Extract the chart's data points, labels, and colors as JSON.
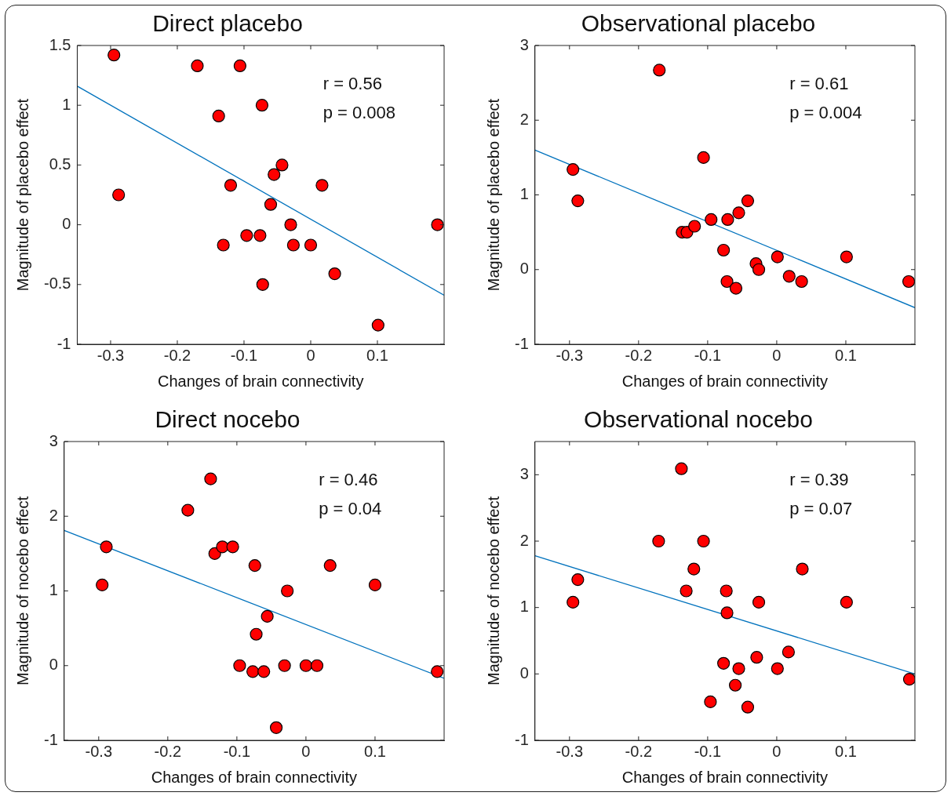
{
  "chart_data": [
    {
      "type": "scatter",
      "title": "Direct placebo",
      "xlabel": "Changes of brain connectivity",
      "ylabel": "Magnitude of placebo effect",
      "xlim": [
        -0.35,
        0.2
      ],
      "xticks": [
        -0.3,
        -0.2,
        -0.1,
        0,
        0.1
      ],
      "ylim": [
        -1,
        1.5
      ],
      "yticks": [
        -1,
        -0.5,
        0,
        0.5,
        1,
        1.5
      ],
      "grid": false,
      "legend": false,
      "annotations": [
        "r = 0.56",
        "p = 0.008"
      ],
      "series": [
        {
          "type": "scatter",
          "color": "#ff0000",
          "marker": "circle",
          "x": [
            -0.295,
            -0.288,
            -0.17,
            -0.106,
            -0.138,
            -0.073,
            -0.12,
            -0.131,
            -0.096,
            -0.076,
            -0.072,
            -0.043,
            -0.055,
            -0.06,
            -0.03,
            -0.026,
            0,
            0.017,
            0.036,
            0.101,
            0.19
          ],
          "values": [
            1.42,
            0.25,
            1.33,
            1.33,
            0.91,
            1.0,
            0.33,
            -0.17,
            -0.09,
            -0.09,
            -0.5,
            0.5,
            0.42,
            0.17,
            0,
            -0.17,
            -0.17,
            0.33,
            -0.41,
            -0.84,
            0
          ]
        },
        {
          "type": "line",
          "color": "#0072bd",
          "marker": "none",
          "x": [
            -0.35,
            0.2
          ],
          "values": [
            1.16,
            -0.59
          ]
        }
      ]
    },
    {
      "type": "scatter",
      "title": "Observational placebo",
      "xlabel": "Changes of brain connectivity",
      "ylabel": "Magnitude of placebo effect",
      "xlim": [
        -0.35,
        0.2
      ],
      "xticks": [
        -0.3,
        -0.2,
        -0.1,
        0,
        0.1
      ],
      "ylim": [
        -1,
        3
      ],
      "yticks": [
        -1,
        0,
        1,
        2,
        3
      ],
      "grid": false,
      "legend": false,
      "annotations": [
        "r = 0.61",
        "p = 0.004"
      ],
      "series": [
        {
          "type": "scatter",
          "color": "#ff0000",
          "marker": "circle",
          "x": [
            -0.295,
            -0.288,
            -0.17,
            -0.106,
            -0.137,
            -0.13,
            -0.119,
            -0.095,
            -0.071,
            -0.055,
            -0.042,
            -0.077,
            -0.072,
            -0.059,
            -0.03,
            -0.026,
            0.001,
            0.018,
            0.036,
            0.101,
            0.191
          ],
          "values": [
            1.34,
            0.92,
            2.67,
            1.5,
            0.5,
            0.5,
            0.58,
            0.67,
            0.67,
            0.76,
            0.92,
            0.26,
            -0.16,
            -0.25,
            0.08,
            0,
            0.17,
            -0.09,
            -0.16,
            0.17,
            -0.16
          ]
        },
        {
          "type": "line",
          "color": "#0072bd",
          "marker": "none",
          "x": [
            -0.35,
            0.2
          ],
          "values": [
            1.6,
            -0.51
          ]
        }
      ]
    },
    {
      "type": "scatter",
      "title": "Direct nocebo",
      "xlabel": "Changes of brain connectivity",
      "ylabel": "Magnitude of nocebo effect",
      "xlim": [
        -0.35,
        0.2
      ],
      "xticks": [
        -0.3,
        -0.2,
        -0.1,
        0,
        0.1
      ],
      "ylim": [
        -1,
        3
      ],
      "yticks": [
        -1,
        0,
        1,
        2,
        3
      ],
      "grid": false,
      "legend": false,
      "annotations": [
        "r = 0.46",
        "p = 0.04"
      ],
      "series": [
        {
          "type": "scatter",
          "color": "#ff0000",
          "marker": "circle",
          "x": [
            -0.295,
            -0.289,
            -0.171,
            -0.138,
            -0.132,
            -0.121,
            -0.106,
            -0.074,
            -0.072,
            -0.056,
            -0.027,
            -0.096,
            -0.077,
            -0.061,
            -0.043,
            -0.031,
            0,
            0.016,
            0.035,
            0.1,
            0.19
          ],
          "values": [
            1.08,
            1.59,
            2.08,
            2.5,
            1.5,
            1.59,
            1.59,
            1.34,
            0.42,
            0.66,
            1.0,
            0,
            -0.08,
            -0.08,
            -0.83,
            0,
            0,
            0,
            1.34,
            1.08,
            -0.08
          ]
        },
        {
          "type": "line",
          "color": "#0072bd",
          "marker": "none",
          "x": [
            -0.35,
            0.2
          ],
          "values": [
            1.81,
            -0.17
          ]
        }
      ]
    },
    {
      "type": "scatter",
      "title": "Observational nocebo",
      "xlabel": "Changes of brain connectivity",
      "ylabel": "Magnitude of nocebo effect",
      "xlim": [
        -0.35,
        0.2
      ],
      "xticks": [
        -0.3,
        -0.2,
        -0.1,
        0,
        0.1
      ],
      "ylim": [
        -1,
        3.5
      ],
      "yticks": [
        -1,
        0,
        1,
        2,
        3
      ],
      "grid": false,
      "legend": false,
      "annotations": [
        "r = 0.39",
        "p = 0.07"
      ],
      "series": [
        {
          "type": "scatter",
          "color": "#ff0000",
          "marker": "circle",
          "x": [
            -0.295,
            -0.288,
            -0.171,
            -0.138,
            -0.131,
            -0.12,
            -0.106,
            -0.073,
            -0.072,
            -0.077,
            -0.096,
            -0.06,
            -0.055,
            -0.042,
            -0.029,
            -0.026,
            0.001,
            0.017,
            0.037,
            0.101,
            0.192
          ],
          "values": [
            1.08,
            1.42,
            2.0,
            3.09,
            1.25,
            1.58,
            2.0,
            1.25,
            0.92,
            0.16,
            -0.42,
            -0.17,
            0.08,
            -0.5,
            0.25,
            1.08,
            0.08,
            0.33,
            1.58,
            1.08,
            -0.08
          ]
        },
        {
          "type": "line",
          "color": "#0072bd",
          "marker": "none",
          "x": [
            -0.35,
            0.2
          ],
          "values": [
            1.78,
            0
          ]
        }
      ]
    }
  ]
}
